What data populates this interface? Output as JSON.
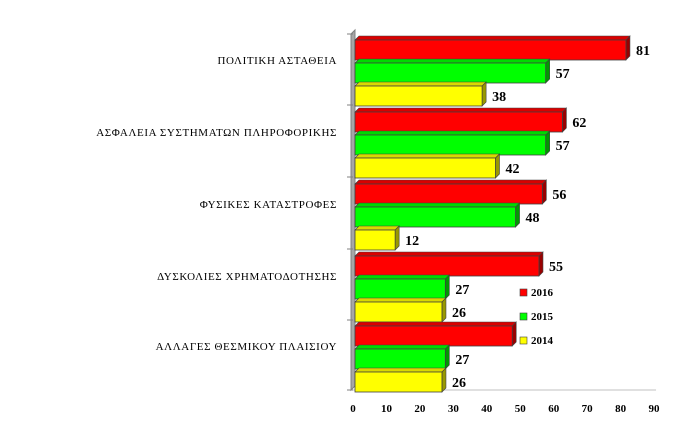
{
  "chart_data": {
    "type": "bar",
    "orientation": "horizontal",
    "categories": [
      "ΠΟΛΙΤΙΚΗ  ΑΣΤΑΘΕΙΑ",
      "ΑΣΦΑΛΕΙΑ ΣΥΣΤΗΜΑΤΩΝ ΠΛΗΡΟΦΟΡΙΚΗΣ",
      "ΦΥΣΙΚΕΣ ΚΑΤΑΣΤΡΟΦΕΣ",
      "ΔΥΣΚΟΛΙΕΣ ΧΡΗΜΑΤΟΔΟΤΗΣΗΣ",
      "ΑΛΛΑΓΕΣ ΘΕΣΜΙΚΟΥ ΠΛΑΙΣΙΟΥ"
    ],
    "series": [
      {
        "name": "2016",
        "color": "#ff0000",
        "values": [
          81,
          62,
          56,
          55,
          47
        ]
      },
      {
        "name": "2015",
        "color": "#00ff00",
        "values": [
          57,
          57,
          48,
          27,
          27
        ]
      },
      {
        "name": "2014",
        "color": "#ffff00",
        "values": [
          38,
          42,
          12,
          26,
          26
        ]
      }
    ],
    "value_labels": [
      [
        "81",
        "57",
        "38"
      ],
      [
        "62",
        "57",
        "42"
      ],
      [
        "56",
        "48",
        "12"
      ],
      [
        "55",
        "27",
        "26"
      ],
      [
        "",
        "27",
        "26"
      ]
    ],
    "xlim": [
      0,
      90
    ],
    "x_ticks": [
      "0",
      "10",
      "20",
      "30",
      "40",
      "50",
      "60",
      "70",
      "80",
      "90"
    ],
    "legend": {
      "position": "lower-right",
      "order": [
        "2016",
        "2015",
        "2014"
      ]
    },
    "grid": false,
    "style": "3d"
  }
}
